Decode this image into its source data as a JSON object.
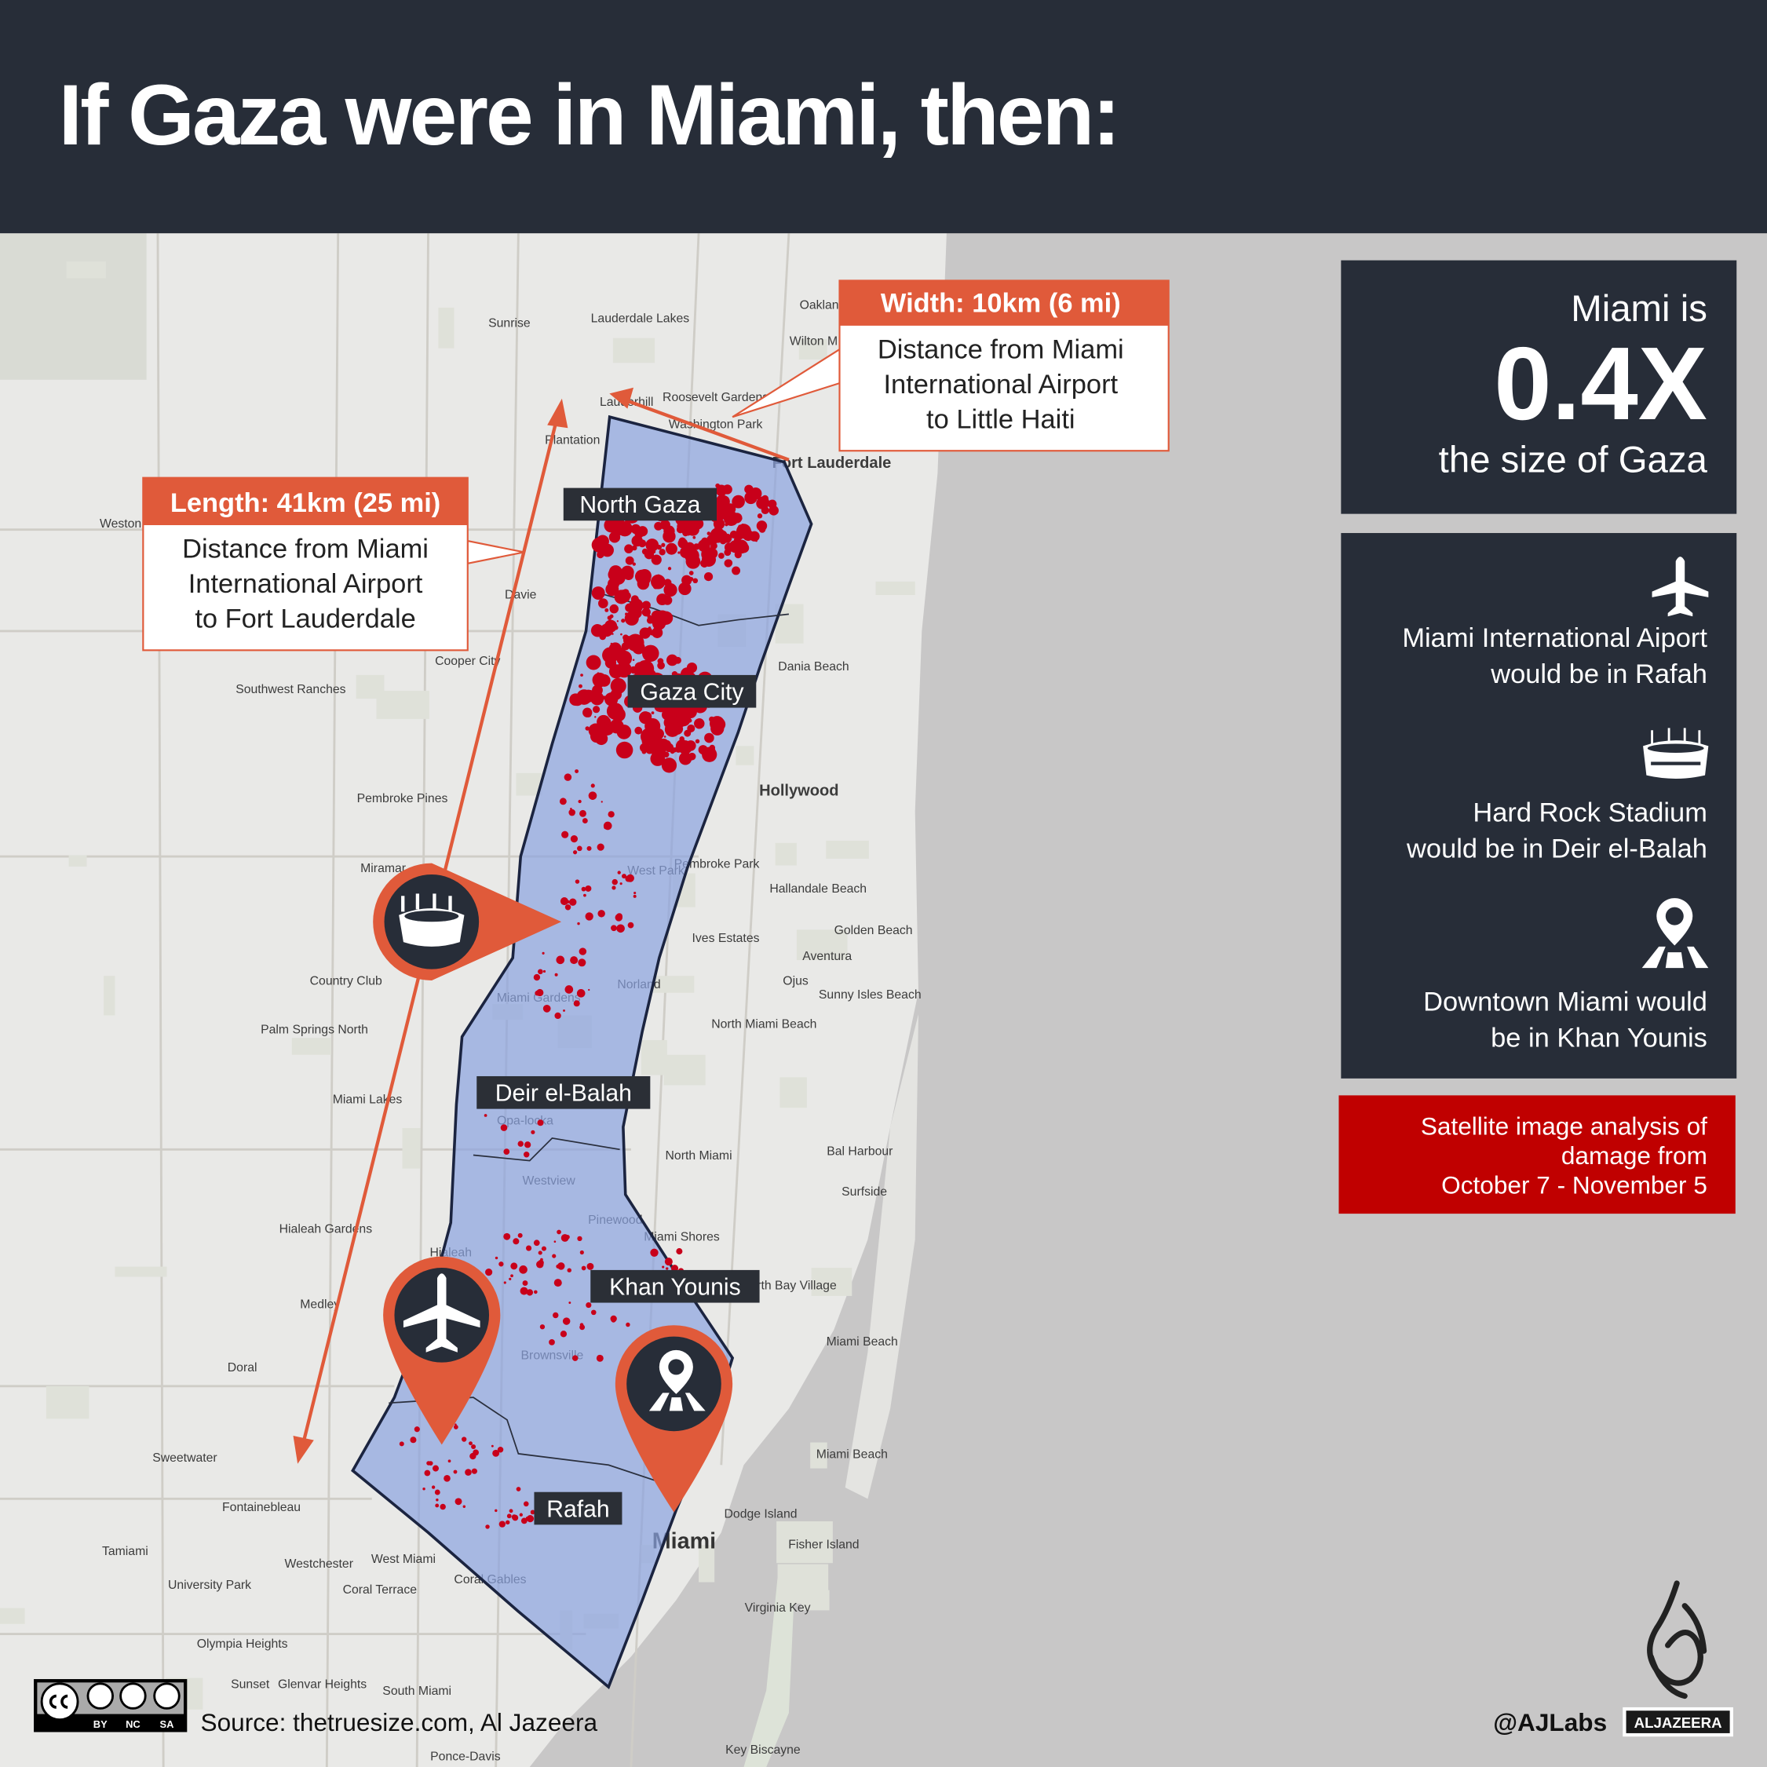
{
  "header": {
    "title": "If Gaza were in Miami, then:"
  },
  "colors": {
    "header_bg": "#272d38",
    "panel_bg": "#272d38",
    "accent_orange": "#e05a3a",
    "alert_red": "#c00000",
    "gaza_fill": "#8aa3df",
    "damage_red": "#c8001a",
    "land": "#e9e9e7",
    "water": "#c8c7c7"
  },
  "callouts": {
    "width": {
      "title": "Width: 10km (6 mi)",
      "lines": [
        "Distance from Miami",
        "International Airport",
        "to Little Haiti"
      ]
    },
    "length": {
      "title": "Length: 41km (25 mi)",
      "lines": [
        "Distance from Miami",
        "International Airport",
        "to Fort Lauderdale"
      ]
    }
  },
  "gaza_regions": [
    "North Gaza",
    "Gaza City",
    "Deir el-Balah",
    "Khan Younis",
    "Rafah"
  ],
  "pins": [
    {
      "icon": "stadium-icon"
    },
    {
      "icon": "airplane-icon"
    },
    {
      "icon": "location-map-icon"
    }
  ],
  "panel": {
    "scale": {
      "prefix": "Miami is",
      "value": "0.4X",
      "suffix": "the size of Gaza"
    },
    "items": [
      {
        "icon": "airplane-icon",
        "lines": [
          "Miami International Aiport",
          "would be in Rafah"
        ]
      },
      {
        "icon": "stadium-icon",
        "lines": [
          "Hard Rock Stadium",
          "would be in Deir el-Balah"
        ]
      },
      {
        "icon": "location-map-icon",
        "lines": [
          "Downtown Miami would",
          "be in Khan Younis"
        ]
      }
    ],
    "note": [
      "Satellite image analysis of",
      "damage from",
      "October 7 - November 5"
    ]
  },
  "map_labels": [
    "Sunrise",
    "Lauderdale Lakes",
    "Oakland",
    "Wilton M",
    "Roosevelt Gardens",
    "Washington Park",
    "Plantation",
    "Lauderhill",
    "Fort Lauderdale",
    "Weston",
    "Davie",
    "Cooper City",
    "Dania Beach",
    "Southwest Ranches",
    "Pembroke Pines",
    "Hollywood",
    "Miramar",
    "Pembroke Park",
    "Hallandale Beach",
    "West Park",
    "Golden Beach",
    "Ives Estates",
    "Aventura",
    "Ojus",
    "Country Club",
    "Norland",
    "Sunny Isles Beach",
    "Palm Springs North",
    "North Miami Beach",
    "Miami Gardens",
    "Opa-locka",
    "Miami Lakes",
    "North Miami",
    "Bal Harbour",
    "Surfside",
    "Westview",
    "Hialeah Gardens",
    "Pinewood",
    "Miami Shores",
    "Hialeah",
    "Medley",
    "North Bay Village",
    "Miami Beach",
    "Doral",
    "Brownsville",
    "Sweetwater",
    "Miami Beach",
    "Fontainebleau",
    "Dodge Island",
    "Miami",
    "Fisher Island",
    "Tamiami",
    "Westchester",
    "West Miami",
    "Coral Terrace",
    "Coral Gables",
    "University Park",
    "Virginia Key",
    "Olympia Heights",
    "Key Biscayne",
    "Glenvar Heights",
    "Sunset",
    "South Miami",
    "Ponce-Davis"
  ],
  "footer": {
    "license": [
      "BY",
      "NC",
      "SA"
    ],
    "source": "Source:  thetruesize.com, Al Jazeera",
    "handle": "@AJLabs",
    "brand": "ALJAZEERA"
  }
}
